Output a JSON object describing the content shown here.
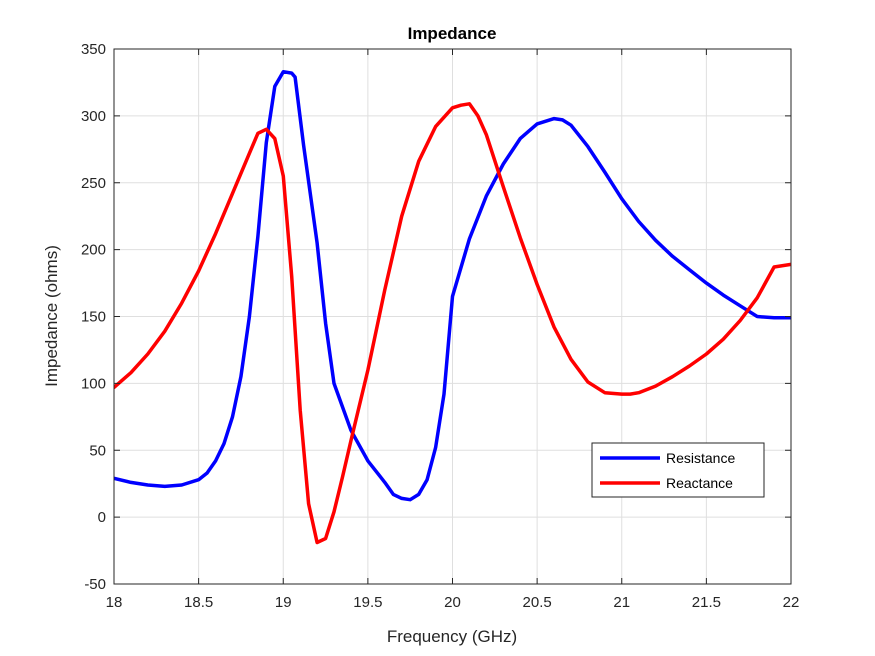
{
  "chart_data": {
    "type": "line",
    "title": "Impedance",
    "xlabel": "Frequency (GHz)",
    "ylabel": "Impedance (ohms)",
    "xlim": [
      18,
      22
    ],
    "ylim": [
      -50,
      350
    ],
    "xticks": [
      18,
      18.5,
      19,
      19.5,
      20,
      20.5,
      21,
      21.5,
      22
    ],
    "xtick_labels": [
      "18",
      "18.5",
      "19",
      "19.5",
      "20",
      "20.5",
      "21",
      "21.5",
      "22"
    ],
    "yticks": [
      -50,
      0,
      50,
      100,
      150,
      200,
      250,
      300,
      350
    ],
    "ytick_labels": [
      "-50",
      "0",
      "50",
      "100",
      "150",
      "200",
      "250",
      "300",
      "350"
    ],
    "grid": true,
    "legend_position": "lower-right",
    "series": [
      {
        "name": "Resistance",
        "color": "#0000ff",
        "x": [
          18.0,
          18.1,
          18.2,
          18.3,
          18.4,
          18.5,
          18.55,
          18.6,
          18.65,
          18.7,
          18.75,
          18.8,
          18.85,
          18.9,
          18.95,
          19.0,
          19.05,
          19.07,
          19.12,
          19.2,
          19.25,
          19.3,
          19.4,
          19.5,
          19.6,
          19.65,
          19.7,
          19.75,
          19.8,
          19.85,
          19.9,
          19.95,
          20.0,
          20.1,
          20.2,
          20.3,
          20.4,
          20.5,
          20.6,
          20.65,
          20.7,
          20.8,
          20.9,
          21.0,
          21.1,
          21.2,
          21.3,
          21.4,
          21.5,
          21.6,
          21.7,
          21.8,
          21.9,
          22.0
        ],
        "values": [
          29,
          26,
          24,
          23,
          24,
          28,
          33,
          42,
          55,
          75,
          105,
          150,
          210,
          280,
          322,
          333,
          332,
          329,
          278,
          205,
          145,
          100,
          65,
          42,
          26,
          17,
          14,
          13,
          17,
          28,
          52,
          92,
          165,
          208,
          240,
          264,
          283,
          294,
          298,
          297,
          293,
          277,
          258,
          238,
          221,
          207,
          195,
          185,
          175,
          166,
          158,
          150,
          149,
          149
        ],
        "values_note_removed": true
      },
      {
        "name": "Reactance",
        "color": "#ff0000",
        "x": [
          18.0,
          18.1,
          18.2,
          18.3,
          18.4,
          18.5,
          18.6,
          18.7,
          18.8,
          18.85,
          18.9,
          18.95,
          19.0,
          19.05,
          19.1,
          19.15,
          19.2,
          19.25,
          19.3,
          19.35,
          19.4,
          19.5,
          19.6,
          19.7,
          19.8,
          19.9,
          20.0,
          20.05,
          20.1,
          20.15,
          20.2,
          20.3,
          20.4,
          20.5,
          20.6,
          20.7,
          20.8,
          20.9,
          21.0,
          21.05,
          21.1,
          21.2,
          21.3,
          21.4,
          21.5,
          21.6,
          21.7,
          21.8,
          21.9,
          22.0
        ],
        "values": [
          97,
          108,
          122,
          139,
          160,
          184,
          212,
          242,
          272,
          287,
          290,
          283,
          255,
          180,
          80,
          10,
          -19,
          -16,
          4,
          30,
          57,
          110,
          170,
          225,
          266,
          292,
          306,
          308,
          309,
          300,
          286,
          247,
          209,
          174,
          142,
          118,
          101,
          93,
          92,
          92,
          93,
          98,
          105,
          113,
          122,
          133,
          147,
          164,
          187,
          189
        ]
      }
    ]
  }
}
